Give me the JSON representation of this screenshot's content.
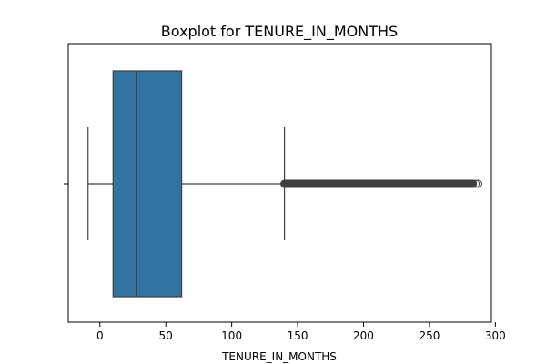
{
  "chart_data": {
    "type": "boxplot",
    "title": "Boxplot for TENURE_IN_MONTHS",
    "xlabel": "TENURE_IN_MONTHS",
    "ylabel": "",
    "orientation": "horizontal",
    "xlim": [
      -24,
      297
    ],
    "xticks": [
      0,
      50,
      100,
      150,
      200,
      250,
      300
    ],
    "series": [
      {
        "name": "TENURE_IN_MONTHS",
        "whisker_low": -9,
        "q1": 10,
        "median": 28,
        "q3": 62,
        "whisker_high": 140,
        "outliers_range": [
          140,
          283
        ],
        "outliers_sparse": [
          285,
          287
        ]
      }
    ],
    "colors": {
      "box": "#3274a1",
      "line": "#3f3f3f"
    }
  }
}
